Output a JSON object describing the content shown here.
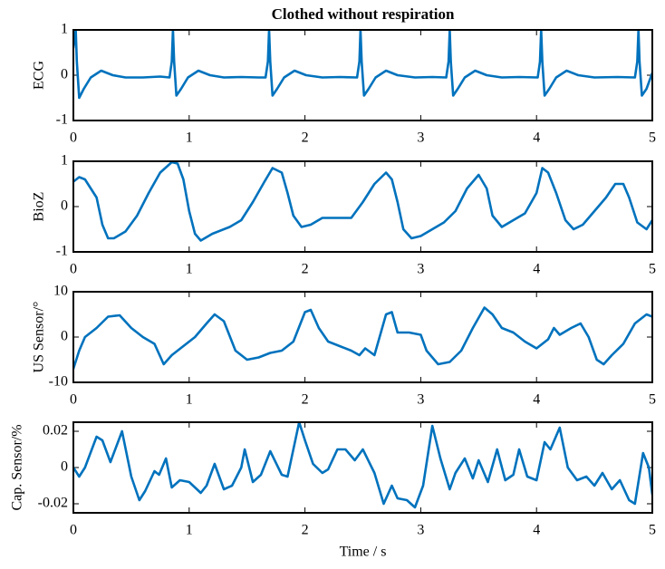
{
  "chart_data": [
    {
      "type": "line",
      "title": "Clothed without respiration",
      "ylabel": "ECG",
      "xlim": [
        0,
        5
      ],
      "xticks": [
        0,
        1,
        2,
        3,
        4,
        5
      ],
      "ylim": [
        -1,
        1
      ],
      "yticks": [
        -1,
        0,
        1
      ],
      "grid": false,
      "series": [
        {
          "name": "ECG",
          "color": "#0072bd",
          "x": [
            0,
            0.02,
            0.03,
            0.05,
            0.09,
            0.15,
            0.24,
            0.34,
            0.45,
            0.6,
            0.75,
            0.83,
            0.85,
            0.86,
            0.87,
            0.89,
            0.93,
            0.99,
            1.08,
            1.18,
            1.3,
            1.45,
            1.6,
            1.66,
            1.68,
            1.69,
            1.7,
            1.72,
            1.76,
            1.82,
            1.91,
            2.01,
            2.15,
            2.3,
            2.45,
            2.47,
            2.48,
            2.49,
            2.51,
            2.55,
            2.61,
            2.7,
            2.8,
            2.95,
            3.1,
            3.22,
            3.24,
            3.25,
            3.26,
            3.28,
            3.32,
            3.38,
            3.47,
            3.57,
            3.7,
            3.85,
            4.01,
            4.03,
            4.04,
            4.05,
            4.07,
            4.11,
            4.17,
            4.26,
            4.36,
            4.5,
            4.7,
            4.85,
            4.87,
            4.88,
            4.89,
            4.91,
            4.95,
            5.0
          ],
          "values": [
            0.6,
            1.0,
            0.3,
            -0.5,
            -0.3,
            -0.05,
            0.1,
            0.0,
            -0.05,
            -0.05,
            -0.03,
            -0.05,
            0.3,
            1.0,
            0.3,
            -0.45,
            -0.3,
            -0.05,
            0.1,
            0.0,
            -0.05,
            -0.04,
            -0.05,
            -0.05,
            0.3,
            1.0,
            0.3,
            -0.45,
            -0.3,
            -0.05,
            0.1,
            0.0,
            -0.05,
            -0.04,
            -0.05,
            0.3,
            1.0,
            0.3,
            -0.45,
            -0.3,
            -0.05,
            0.1,
            0.0,
            -0.05,
            -0.04,
            -0.05,
            0.3,
            1.0,
            0.3,
            -0.45,
            -0.3,
            -0.05,
            0.1,
            0.0,
            -0.05,
            -0.04,
            -0.05,
            0.3,
            1.0,
            0.3,
            -0.45,
            -0.3,
            -0.05,
            0.1,
            0.0,
            -0.05,
            -0.04,
            -0.05,
            0.3,
            1.0,
            0.3,
            -0.45,
            -0.3,
            0.05
          ]
        }
      ]
    },
    {
      "type": "line",
      "ylabel": "BioZ",
      "xlim": [
        0,
        5
      ],
      "xticks": [
        0,
        1,
        2,
        3,
        4,
        5
      ],
      "ylim": [
        -1,
        1
      ],
      "yticks": [
        -1,
        0,
        1
      ],
      "grid": false,
      "series": [
        {
          "name": "BioZ",
          "color": "#0072bd",
          "x": [
            0,
            0.05,
            0.1,
            0.2,
            0.25,
            0.3,
            0.35,
            0.45,
            0.55,
            0.65,
            0.75,
            0.85,
            0.9,
            0.95,
            1.0,
            1.05,
            1.1,
            1.2,
            1.35,
            1.45,
            1.55,
            1.65,
            1.72,
            1.8,
            1.85,
            1.9,
            1.97,
            2.05,
            2.15,
            2.3,
            2.4,
            2.5,
            2.6,
            2.7,
            2.75,
            2.8,
            2.85,
            2.92,
            3.0,
            3.1,
            3.2,
            3.3,
            3.4,
            3.5,
            3.57,
            3.62,
            3.7,
            3.8,
            3.9,
            4.0,
            4.05,
            4.1,
            4.17,
            4.25,
            4.32,
            4.4,
            4.5,
            4.6,
            4.68,
            4.75,
            4.8,
            4.87,
            4.95,
            5.0
          ],
          "values": [
            0.55,
            0.65,
            0.6,
            0.2,
            -0.4,
            -0.7,
            -0.7,
            -0.55,
            -0.2,
            0.3,
            0.75,
            0.98,
            0.95,
            0.6,
            -0.1,
            -0.6,
            -0.75,
            -0.6,
            -0.45,
            -0.3,
            0.1,
            0.55,
            0.85,
            0.75,
            0.3,
            -0.2,
            -0.45,
            -0.4,
            -0.25,
            -0.25,
            -0.25,
            0.1,
            0.5,
            0.75,
            0.6,
            0.1,
            -0.5,
            -0.7,
            -0.65,
            -0.5,
            -0.35,
            -0.1,
            0.4,
            0.7,
            0.4,
            -0.2,
            -0.45,
            -0.3,
            -0.15,
            0.3,
            0.85,
            0.75,
            0.3,
            -0.3,
            -0.5,
            -0.4,
            -0.1,
            0.2,
            0.5,
            0.5,
            0.2,
            -0.35,
            -0.5,
            -0.3
          ]
        }
      ]
    },
    {
      "type": "line",
      "ylabel": "US Sensor/°",
      "xlim": [
        0,
        5
      ],
      "xticks": [
        0,
        1,
        2,
        3,
        4,
        5
      ],
      "ylim": [
        -10,
        10
      ],
      "yticks": [
        -10,
        0,
        10
      ],
      "grid": false,
      "series": [
        {
          "name": "US Sensor",
          "color": "#0072bd",
          "x": [
            0,
            0.05,
            0.1,
            0.2,
            0.3,
            0.4,
            0.5,
            0.6,
            0.7,
            0.78,
            0.85,
            0.95,
            1.05,
            1.15,
            1.22,
            1.3,
            1.4,
            1.5,
            1.6,
            1.7,
            1.8,
            1.9,
            2.0,
            2.05,
            2.12,
            2.2,
            2.3,
            2.4,
            2.47,
            2.52,
            2.6,
            2.7,
            2.75,
            2.8,
            2.9,
            3.0,
            3.05,
            3.15,
            3.25,
            3.35,
            3.45,
            3.55,
            3.62,
            3.7,
            3.8,
            3.9,
            4.0,
            4.1,
            4.15,
            4.2,
            4.3,
            4.38,
            4.45,
            4.52,
            4.58,
            4.65,
            4.75,
            4.85,
            4.9,
            4.95,
            5.0
          ],
          "values": [
            -7,
            -3,
            0,
            2,
            4.5,
            4.8,
            2,
            0,
            -1.5,
            -6,
            -4,
            -2,
            0,
            3,
            5,
            3.5,
            -3,
            -5,
            -4.5,
            -3.5,
            -3,
            -1,
            5.5,
            6,
            2,
            -1,
            -2,
            -3,
            -4,
            -2.5,
            -4,
            5,
            5.5,
            1,
            1,
            0.5,
            -3,
            -6,
            -5.5,
            -3,
            2,
            6.5,
            5,
            2,
            1,
            -1,
            -2.5,
            -0.5,
            2,
            0.5,
            2,
            3,
            0,
            -5,
            -6,
            -4,
            -1.5,
            3,
            4,
            5,
            4.5
          ]
        }
      ]
    },
    {
      "type": "line",
      "ylabel": "Cap. Sensor/%",
      "xlabel": "Time / s",
      "xlim": [
        0,
        5
      ],
      "xticks": [
        0,
        1,
        2,
        3,
        4,
        5
      ],
      "ylim": [
        -0.025,
        0.025
      ],
      "yticks": [
        -0.02,
        0,
        0.02
      ],
      "grid": false,
      "series": [
        {
          "name": "Cap. Sensor",
          "color": "#0072bd",
          "x": [
            0,
            0.05,
            0.1,
            0.2,
            0.25,
            0.32,
            0.42,
            0.5,
            0.57,
            0.62,
            0.7,
            0.74,
            0.8,
            0.85,
            0.92,
            1.0,
            1.1,
            1.15,
            1.22,
            1.3,
            1.37,
            1.45,
            1.48,
            1.55,
            1.62,
            1.7,
            1.8,
            1.85,
            1.95,
            2.0,
            2.07,
            2.15,
            2.2,
            2.28,
            2.35,
            2.43,
            2.5,
            2.6,
            2.68,
            2.75,
            2.8,
            2.88,
            2.95,
            3.02,
            3.1,
            3.17,
            3.25,
            3.3,
            3.38,
            3.45,
            3.5,
            3.58,
            3.66,
            3.73,
            3.8,
            3.85,
            3.92,
            4.0,
            4.07,
            4.12,
            4.2,
            4.27,
            4.35,
            4.43,
            4.5,
            4.57,
            4.65,
            4.72,
            4.8,
            4.85,
            4.92,
            4.97,
            5.0
          ],
          "values": [
            0,
            -0.005,
            0,
            0.017,
            0.015,
            0.003,
            0.02,
            -0.005,
            -0.018,
            -0.013,
            -0.002,
            -0.004,
            0.005,
            -0.011,
            -0.007,
            -0.008,
            -0.014,
            -0.01,
            0.002,
            -0.012,
            -0.01,
            0,
            0.01,
            -0.008,
            -0.004,
            0.009,
            -0.004,
            -0.005,
            0.025,
            0.015,
            0.002,
            -0.003,
            -0.001,
            0.01,
            0.01,
            0.004,
            0.01,
            -0.003,
            -0.02,
            -0.01,
            -0.017,
            -0.018,
            -0.022,
            -0.01,
            0.023,
            0.005,
            -0.012,
            -0.003,
            0.005,
            -0.006,
            0.004,
            -0.008,
            0.01,
            -0.007,
            -0.004,
            0.01,
            -0.005,
            -0.007,
            0.014,
            0.01,
            0.022,
            0,
            -0.007,
            -0.005,
            -0.01,
            -0.003,
            -0.012,
            -0.007,
            -0.018,
            -0.02,
            0.008,
            0,
            -0.015
          ]
        }
      ]
    }
  ]
}
